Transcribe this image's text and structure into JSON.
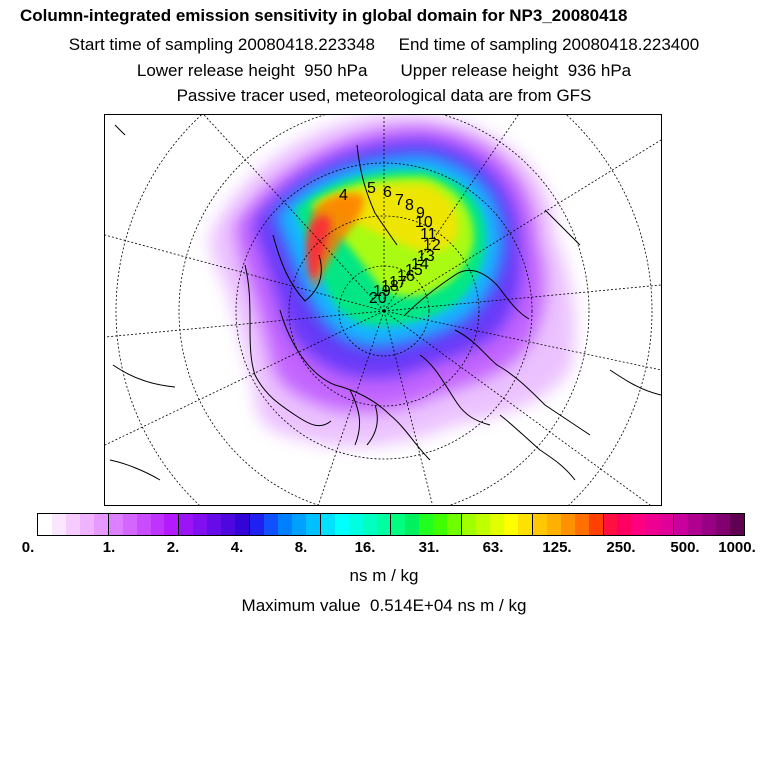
{
  "header": {
    "title": "Column-integrated emission sensitivity in global domain for NP3_20080418",
    "sampling_line": "Start time of sampling 20080418.223348     End time of sampling 20080418.223400",
    "release_line": "Lower release height  950 hPa       Upper release height  936 hPa",
    "tracer_line": "Passive tracer used, meteorological data are from GFS"
  },
  "map": {
    "projection": "north-polar-stereographic",
    "trajectory_points": [
      "4",
      "5",
      "6",
      "7",
      "8",
      "9",
      "10",
      "11",
      "12",
      "13",
      "14",
      "15",
      "16",
      "17",
      "18",
      "19",
      "20"
    ]
  },
  "colorbar": {
    "tick_labels": [
      "0.",
      "1.",
      "2.",
      "4.",
      "8.",
      "16.",
      "31.",
      "63.",
      "125.",
      "250.",
      "500.",
      "1000."
    ],
    "colors": [
      "#ffffff",
      "#fbe6ff",
      "#f6ccff",
      "#f0b3ff",
      "#e699ff",
      "#dd80ff",
      "#d466ff",
      "#c94dff",
      "#bf33ff",
      "#b31aff",
      "#9a14f5",
      "#8010f0",
      "#660ce8",
      "#4d08e0",
      "#3304d8",
      "#2020f0",
      "#1050ff",
      "#0080ff",
      "#00a0ff",
      "#00c0ff",
      "#00e0ff",
      "#00ffff",
      "#00ffe0",
      "#00ffc0",
      "#00ffa0",
      "#00ff80",
      "#00f060",
      "#20ff20",
      "#40ff00",
      "#70ff00",
      "#a0ff00",
      "#c0ff00",
      "#e0ff00",
      "#ffff00",
      "#ffe000",
      "#ffc800",
      "#ffb000",
      "#ff9000",
      "#ff7000",
      "#ff4000",
      "#ff1040",
      "#ff0060",
      "#ff0080",
      "#f00090",
      "#e00098",
      "#c8009c",
      "#b00090",
      "#980084",
      "#800070",
      "#600050"
    ]
  },
  "units": "ns m / kg",
  "maximum": "Maximum value  0.514E+04 ns m / kg"
}
